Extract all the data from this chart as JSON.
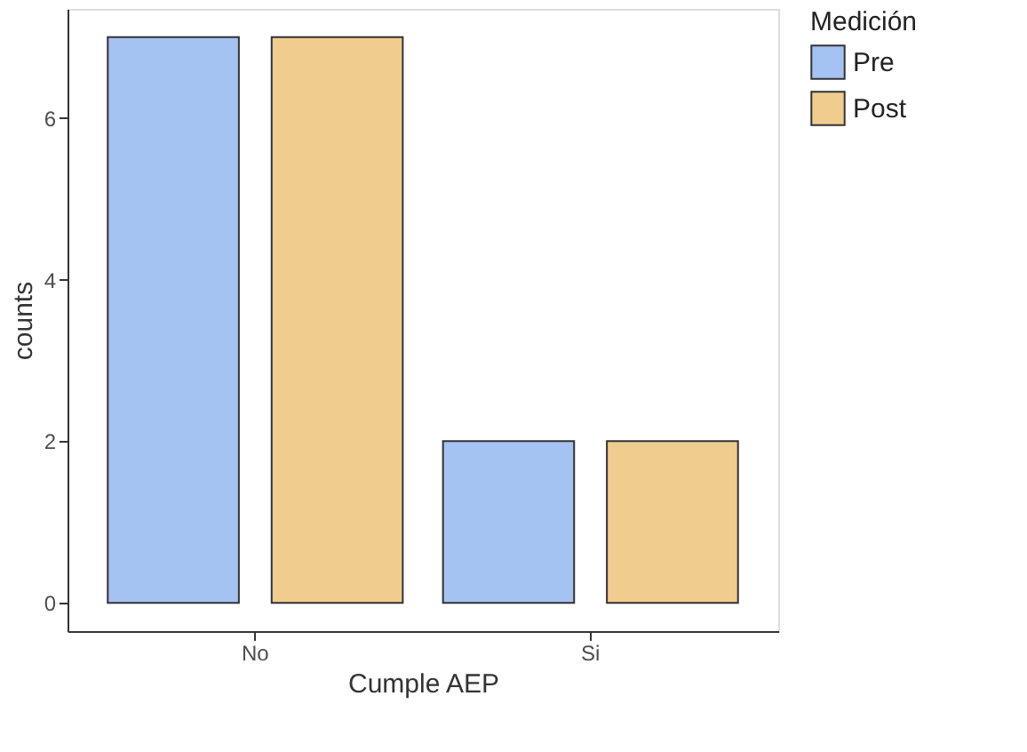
{
  "chart_data": {
    "type": "bar",
    "xlabel": "Cumple AEP",
    "ylabel": "counts",
    "legend_title": "Medición",
    "categories": [
      "No",
      "Si"
    ],
    "series": [
      {
        "name": "Pre",
        "color": "#a4c3f2",
        "values": [
          7,
          2
        ]
      },
      {
        "name": "Post",
        "color": "#f0cd8e",
        "values": [
          7,
          2
        ]
      }
    ],
    "ylim": [
      -0.35,
      7.35
    ],
    "yticks": [
      0,
      2,
      4,
      6
    ],
    "grid": false,
    "legend": "right"
  }
}
